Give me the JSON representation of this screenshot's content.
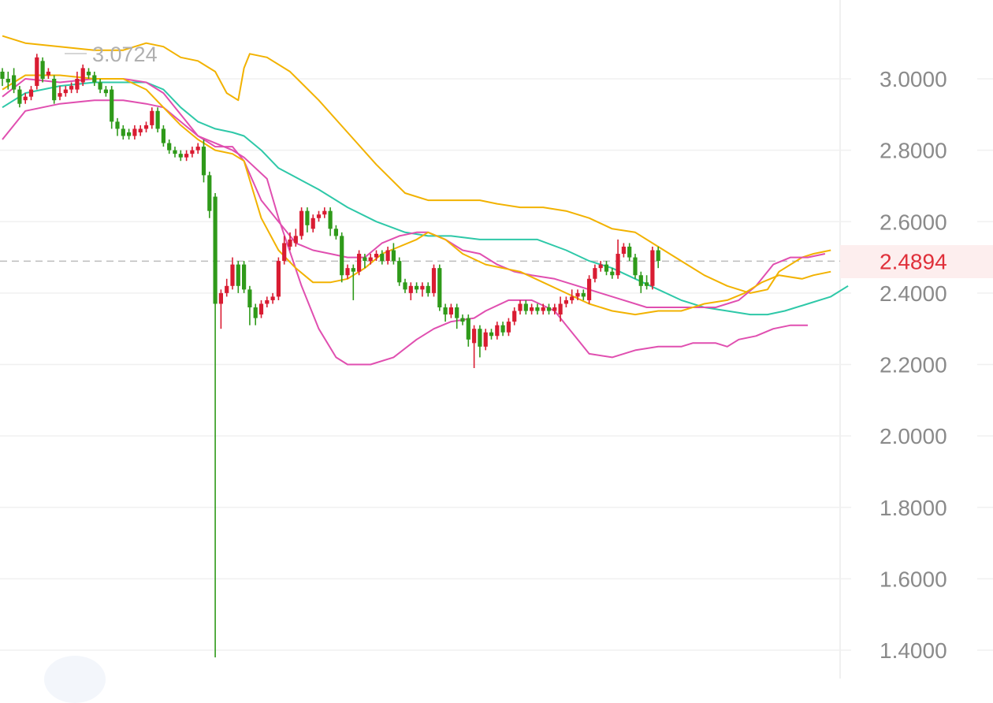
{
  "chart_data": {
    "type": "candlestick",
    "y_ticks": [
      "3.0000",
      "2.8000",
      "2.6000",
      "2.4000",
      "2.2000",
      "2.0000",
      "1.8000",
      "1.6000",
      "1.4000"
    ],
    "ylim": [
      1.36,
      3.22
    ],
    "current_price": "2.4894",
    "high_marker": "3.0724",
    "grid": true,
    "colors": {
      "up": "#d91c32",
      "down": "#2f9a1a",
      "boll_upper": "#f2b200",
      "boll_mid": "#2ec8a8",
      "boll_lower": "#e04fb0",
      "ma_alt": "#f2b200",
      "price_line": "#bdbdbd",
      "current_price_text": "#e0303a",
      "current_price_bg": "#fdeeee",
      "grid": "#f0f0f0",
      "axis_text": "#8a8a8a"
    },
    "candles": [
      [
        3.02,
        3.0,
        3.03,
        2.98
      ],
      [
        3.0,
        2.99,
        3.02,
        2.97
      ],
      [
        3.01,
        2.97,
        3.03,
        2.96
      ],
      [
        2.97,
        2.93,
        2.98,
        2.92
      ],
      [
        2.94,
        2.95,
        2.96,
        2.93
      ],
      [
        2.95,
        2.97,
        2.98,
        2.94
      ],
      [
        2.98,
        3.06,
        3.07,
        2.97
      ],
      [
        3.05,
        3.0,
        3.06,
        2.99
      ],
      [
        3.01,
        3.02,
        3.03,
        3.0
      ],
      [
        3.0,
        2.94,
        3.01,
        2.93
      ],
      [
        2.95,
        2.96,
        2.98,
        2.94
      ],
      [
        2.96,
        2.97,
        2.98,
        2.95
      ],
      [
        2.97,
        2.98,
        2.99,
        2.96
      ],
      [
        2.97,
        3.0,
        3.02,
        2.96
      ],
      [
        2.99,
        3.03,
        3.04,
        2.98
      ],
      [
        3.02,
        3.01,
        3.03,
        3.0
      ],
      [
        3.01,
        2.99,
        3.02,
        2.98
      ],
      [
        2.99,
        2.97,
        3.0,
        2.96
      ],
      [
        2.97,
        2.96,
        2.98,
        2.95
      ],
      [
        2.97,
        2.88,
        2.98,
        2.86
      ],
      [
        2.88,
        2.86,
        2.89,
        2.84
      ],
      [
        2.86,
        2.84,
        2.87,
        2.83
      ],
      [
        2.85,
        2.84,
        2.86,
        2.83
      ],
      [
        2.84,
        2.86,
        2.87,
        2.83
      ],
      [
        2.85,
        2.86,
        2.87,
        2.84
      ],
      [
        2.86,
        2.87,
        2.88,
        2.85
      ],
      [
        2.87,
        2.91,
        2.92,
        2.86
      ],
      [
        2.91,
        2.86,
        2.92,
        2.85
      ],
      [
        2.86,
        2.82,
        2.87,
        2.81
      ],
      [
        2.82,
        2.8,
        2.83,
        2.79
      ],
      [
        2.8,
        2.79,
        2.81,
        2.78
      ],
      [
        2.79,
        2.78,
        2.8,
        2.77
      ],
      [
        2.78,
        2.79,
        2.8,
        2.77
      ],
      [
        2.79,
        2.8,
        2.81,
        2.78
      ],
      [
        2.8,
        2.81,
        2.82,
        2.79
      ],
      [
        2.81,
        2.73,
        2.83,
        2.71
      ],
      [
        2.73,
        2.63,
        2.74,
        2.61
      ],
      [
        2.67,
        2.37,
        2.68,
        1.38
      ],
      [
        2.37,
        2.4,
        2.41,
        2.3
      ],
      [
        2.4,
        2.42,
        2.44,
        2.39
      ],
      [
        2.42,
        2.48,
        2.5,
        2.41
      ],
      [
        2.48,
        2.42,
        2.49,
        2.4
      ],
      [
        2.48,
        2.41,
        2.49,
        2.4
      ],
      [
        2.41,
        2.36,
        2.42,
        2.31
      ],
      [
        2.36,
        2.33,
        2.37,
        2.31
      ],
      [
        2.34,
        2.37,
        2.38,
        2.33
      ],
      [
        2.37,
        2.38,
        2.39,
        2.36
      ],
      [
        2.38,
        2.39,
        2.4,
        2.37
      ],
      [
        2.39,
        2.49,
        2.5,
        2.38
      ],
      [
        2.49,
        2.54,
        2.56,
        2.48
      ],
      [
        2.53,
        2.55,
        2.57,
        2.52
      ],
      [
        2.54,
        2.56,
        2.58,
        2.53
      ],
      [
        2.56,
        2.63,
        2.64,
        2.55
      ],
      [
        2.63,
        2.59,
        2.64,
        2.57
      ],
      [
        2.58,
        2.61,
        2.62,
        2.57
      ],
      [
        2.61,
        2.62,
        2.63,
        2.6
      ],
      [
        2.62,
        2.63,
        2.64,
        2.61
      ],
      [
        2.63,
        2.58,
        2.64,
        2.56
      ],
      [
        2.58,
        2.56,
        2.59,
        2.55
      ],
      [
        2.56,
        2.45,
        2.57,
        2.43
      ],
      [
        2.45,
        2.47,
        2.48,
        2.44
      ],
      [
        2.47,
        2.46,
        2.48,
        2.38
      ],
      [
        2.46,
        2.51,
        2.52,
        2.45
      ],
      [
        2.5,
        2.49,
        2.51,
        2.47
      ],
      [
        2.49,
        2.5,
        2.51,
        2.48
      ],
      [
        2.5,
        2.51,
        2.52,
        2.49
      ],
      [
        2.51,
        2.49,
        2.52,
        2.48
      ],
      [
        2.49,
        2.52,
        2.53,
        2.48
      ],
      [
        2.52,
        2.49,
        2.54,
        2.48
      ],
      [
        2.49,
        2.43,
        2.5,
        2.42
      ],
      [
        2.43,
        2.41,
        2.44,
        2.4
      ],
      [
        2.4,
        2.42,
        2.43,
        2.38
      ],
      [
        2.42,
        2.41,
        2.43,
        2.4
      ],
      [
        2.41,
        2.42,
        2.43,
        2.39
      ],
      [
        2.42,
        2.4,
        2.43,
        2.39
      ],
      [
        2.4,
        2.47,
        2.48,
        2.39
      ],
      [
        2.47,
        2.36,
        2.48,
        2.35
      ],
      [
        2.36,
        2.34,
        2.37,
        2.32
      ],
      [
        2.34,
        2.36,
        2.37,
        2.33
      ],
      [
        2.36,
        2.33,
        2.37,
        2.3
      ],
      [
        2.33,
        2.32,
        2.34,
        2.31
      ],
      [
        2.33,
        2.27,
        2.34,
        2.25
      ],
      [
        2.26,
        2.3,
        2.31,
        2.19
      ],
      [
        2.3,
        2.25,
        2.31,
        2.22
      ],
      [
        2.25,
        2.29,
        2.3,
        2.24
      ],
      [
        2.29,
        2.28,
        2.3,
        2.27
      ],
      [
        2.28,
        2.31,
        2.32,
        2.27
      ],
      [
        2.31,
        2.29,
        2.32,
        2.28
      ],
      [
        2.29,
        2.32,
        2.33,
        2.28
      ],
      [
        2.32,
        2.35,
        2.36,
        2.31
      ],
      [
        2.35,
        2.37,
        2.38,
        2.34
      ],
      [
        2.37,
        2.35,
        2.38,
        2.34
      ],
      [
        2.35,
        2.36,
        2.37,
        2.34
      ],
      [
        2.36,
        2.35,
        2.37,
        2.34
      ],
      [
        2.35,
        2.36,
        2.37,
        2.34
      ],
      [
        2.36,
        2.35,
        2.37,
        2.34
      ],
      [
        2.35,
        2.36,
        2.37,
        2.34
      ],
      [
        2.34,
        2.37,
        2.39,
        2.32
      ],
      [
        2.37,
        2.38,
        2.39,
        2.36
      ],
      [
        2.38,
        2.39,
        2.41,
        2.37
      ],
      [
        2.39,
        2.4,
        2.41,
        2.38
      ],
      [
        2.4,
        2.39,
        2.41,
        2.38
      ],
      [
        2.38,
        2.44,
        2.45,
        2.37
      ],
      [
        2.44,
        2.47,
        2.48,
        2.43
      ],
      [
        2.47,
        2.48,
        2.49,
        2.46
      ],
      [
        2.48,
        2.46,
        2.49,
        2.45
      ],
      [
        2.46,
        2.45,
        2.47,
        2.44
      ],
      [
        2.45,
        2.51,
        2.55,
        2.44
      ],
      [
        2.51,
        2.53,
        2.54,
        2.5
      ],
      [
        2.53,
        2.5,
        2.54,
        2.49
      ],
      [
        2.5,
        2.45,
        2.51,
        2.44
      ],
      [
        2.45,
        2.42,
        2.46,
        2.4
      ],
      [
        2.43,
        2.42,
        2.45,
        2.41
      ],
      [
        2.42,
        2.52,
        2.53,
        2.41
      ],
      [
        2.52,
        2.49,
        2.53,
        2.47
      ]
    ],
    "boll_upper": [
      [
        0,
        3.12
      ],
      [
        4,
        3.1
      ],
      [
        10,
        3.09
      ],
      [
        16,
        3.08
      ],
      [
        21,
        3.08
      ],
      [
        25,
        3.1
      ],
      [
        28,
        3.09
      ],
      [
        31,
        3.06
      ],
      [
        34,
        3.05
      ],
      [
        37,
        3.02
      ],
      [
        39,
        2.96
      ],
      [
        41,
        2.94
      ],
      [
        42,
        3.03
      ],
      [
        43,
        3.07
      ],
      [
        46,
        3.06
      ],
      [
        50,
        3.02
      ],
      [
        55,
        2.94
      ],
      [
        60,
        2.85
      ],
      [
        65,
        2.76
      ],
      [
        70,
        2.68
      ],
      [
        74,
        2.66
      ],
      [
        78,
        2.66
      ],
      [
        83,
        2.66
      ],
      [
        86,
        2.65
      ],
      [
        90,
        2.64
      ],
      [
        94,
        2.64
      ],
      [
        98,
        2.63
      ],
      [
        102,
        2.61
      ],
      [
        106,
        2.58
      ],
      [
        110,
        2.57
      ],
      [
        114,
        2.53
      ],
      [
        118,
        2.49
      ],
      [
        122,
        2.45
      ],
      [
        126,
        2.42
      ],
      [
        130,
        2.4
      ],
      [
        133,
        2.41
      ],
      [
        135,
        2.46
      ],
      [
        139,
        2.5
      ],
      [
        141,
        2.51
      ],
      [
        144,
        2.52
      ]
    ],
    "boll_mid": [
      [
        0,
        2.92
      ],
      [
        4,
        2.96
      ],
      [
        10,
        2.98
      ],
      [
        16,
        2.99
      ],
      [
        21,
        2.99
      ],
      [
        25,
        2.99
      ],
      [
        28,
        2.97
      ],
      [
        31,
        2.92
      ],
      [
        34,
        2.88
      ],
      [
        37,
        2.86
      ],
      [
        40,
        2.85
      ],
      [
        42,
        2.84
      ],
      [
        45,
        2.8
      ],
      [
        48,
        2.75
      ],
      [
        55,
        2.69
      ],
      [
        60,
        2.64
      ],
      [
        65,
        2.6
      ],
      [
        70,
        2.57
      ],
      [
        74,
        2.56
      ],
      [
        78,
        2.56
      ],
      [
        83,
        2.55
      ],
      [
        88,
        2.55
      ],
      [
        93,
        2.55
      ],
      [
        98,
        2.52
      ],
      [
        102,
        2.49
      ],
      [
        106,
        2.47
      ],
      [
        110,
        2.44
      ],
      [
        114,
        2.41
      ],
      [
        118,
        2.38
      ],
      [
        122,
        2.36
      ],
      [
        126,
        2.35
      ],
      [
        130,
        2.34
      ],
      [
        133,
        2.34
      ],
      [
        136,
        2.35
      ],
      [
        140,
        2.37
      ],
      [
        144,
        2.39
      ],
      [
        147,
        2.42
      ]
    ],
    "boll_lower": [
      [
        0,
        2.83
      ],
      [
        4,
        2.91
      ],
      [
        10,
        2.93
      ],
      [
        16,
        2.94
      ],
      [
        21,
        2.94
      ],
      [
        25,
        2.93
      ],
      [
        28,
        2.92
      ],
      [
        31,
        2.88
      ],
      [
        34,
        2.84
      ],
      [
        37,
        2.82
      ],
      [
        40,
        2.8
      ],
      [
        42,
        2.78
      ],
      [
        46,
        2.72
      ],
      [
        48,
        2.61
      ],
      [
        52,
        2.42
      ],
      [
        55,
        2.3
      ],
      [
        58,
        2.22
      ],
      [
        60,
        2.2
      ],
      [
        64,
        2.2
      ],
      [
        68,
        2.22
      ],
      [
        72,
        2.27
      ],
      [
        75,
        2.3
      ],
      [
        78,
        2.32
      ],
      [
        82,
        2.33
      ],
      [
        84,
        2.35
      ],
      [
        88,
        2.38
      ],
      [
        92,
        2.38
      ],
      [
        96,
        2.35
      ],
      [
        98,
        2.31
      ],
      [
        100,
        2.27
      ],
      [
        102,
        2.23
      ],
      [
        106,
        2.22
      ],
      [
        110,
        2.24
      ],
      [
        114,
        2.25
      ],
      [
        118,
        2.25
      ],
      [
        120,
        2.26
      ],
      [
        124,
        2.26
      ],
      [
        126,
        2.25
      ],
      [
        128,
        2.27
      ],
      [
        131,
        2.28
      ],
      [
        134,
        2.3
      ],
      [
        137,
        2.31
      ],
      [
        140,
        2.31
      ]
    ],
    "ma_a": [
      [
        0,
        2.95
      ],
      [
        4,
        3.0
      ],
      [
        10,
        2.99
      ],
      [
        16,
        3.0
      ],
      [
        21,
        3.0
      ],
      [
        25,
        2.99
      ],
      [
        28,
        2.96
      ],
      [
        31,
        2.9
      ],
      [
        34,
        2.84
      ],
      [
        37,
        2.81
      ],
      [
        40,
        2.81
      ],
      [
        42,
        2.77
      ],
      [
        45,
        2.66
      ],
      [
        48,
        2.6
      ],
      [
        51,
        2.54
      ],
      [
        54,
        2.52
      ],
      [
        57,
        2.51
      ],
      [
        60,
        2.5
      ],
      [
        63,
        2.5
      ],
      [
        66,
        2.54
      ],
      [
        69,
        2.56
      ],
      [
        72,
        2.57
      ],
      [
        74,
        2.57
      ],
      [
        77,
        2.55
      ],
      [
        80,
        2.52
      ],
      [
        83,
        2.51
      ],
      [
        86,
        2.48
      ],
      [
        89,
        2.46
      ],
      [
        92,
        2.45
      ],
      [
        96,
        2.44
      ],
      [
        100,
        2.42
      ],
      [
        104,
        2.4
      ],
      [
        108,
        2.38
      ],
      [
        112,
        2.36
      ],
      [
        116,
        2.36
      ],
      [
        120,
        2.36
      ],
      [
        124,
        2.36
      ],
      [
        128,
        2.38
      ],
      [
        131,
        2.42
      ],
      [
        134,
        2.48
      ],
      [
        137,
        2.5
      ],
      [
        140,
        2.5
      ],
      [
        143,
        2.51
      ]
    ],
    "ma_b": [
      [
        0,
        2.97
      ],
      [
        4,
        3.01
      ],
      [
        10,
        3.01
      ],
      [
        16,
        3.0
      ],
      [
        21,
        3.0
      ],
      [
        25,
        2.97
      ],
      [
        28,
        2.92
      ],
      [
        31,
        2.87
      ],
      [
        34,
        2.83
      ],
      [
        37,
        2.8
      ],
      [
        40,
        2.79
      ],
      [
        42,
        2.77
      ],
      [
        45,
        2.61
      ],
      [
        48,
        2.52
      ],
      [
        51,
        2.47
      ],
      [
        54,
        2.43
      ],
      [
        57,
        2.43
      ],
      [
        60,
        2.44
      ],
      [
        63,
        2.47
      ],
      [
        66,
        2.51
      ],
      [
        69,
        2.53
      ],
      [
        72,
        2.55
      ],
      [
        74,
        2.57
      ],
      [
        77,
        2.55
      ],
      [
        80,
        2.51
      ],
      [
        84,
        2.48
      ],
      [
        87,
        2.47
      ],
      [
        90,
        2.46
      ],
      [
        94,
        2.43
      ],
      [
        98,
        2.4
      ],
      [
        102,
        2.37
      ],
      [
        106,
        2.35
      ],
      [
        110,
        2.34
      ],
      [
        114,
        2.35
      ],
      [
        118,
        2.35
      ],
      [
        122,
        2.37
      ],
      [
        126,
        2.38
      ],
      [
        129,
        2.4
      ],
      [
        132,
        2.43
      ],
      [
        135,
        2.45
      ],
      [
        139,
        2.44
      ],
      [
        141,
        2.45
      ],
      [
        144,
        2.46
      ]
    ]
  }
}
